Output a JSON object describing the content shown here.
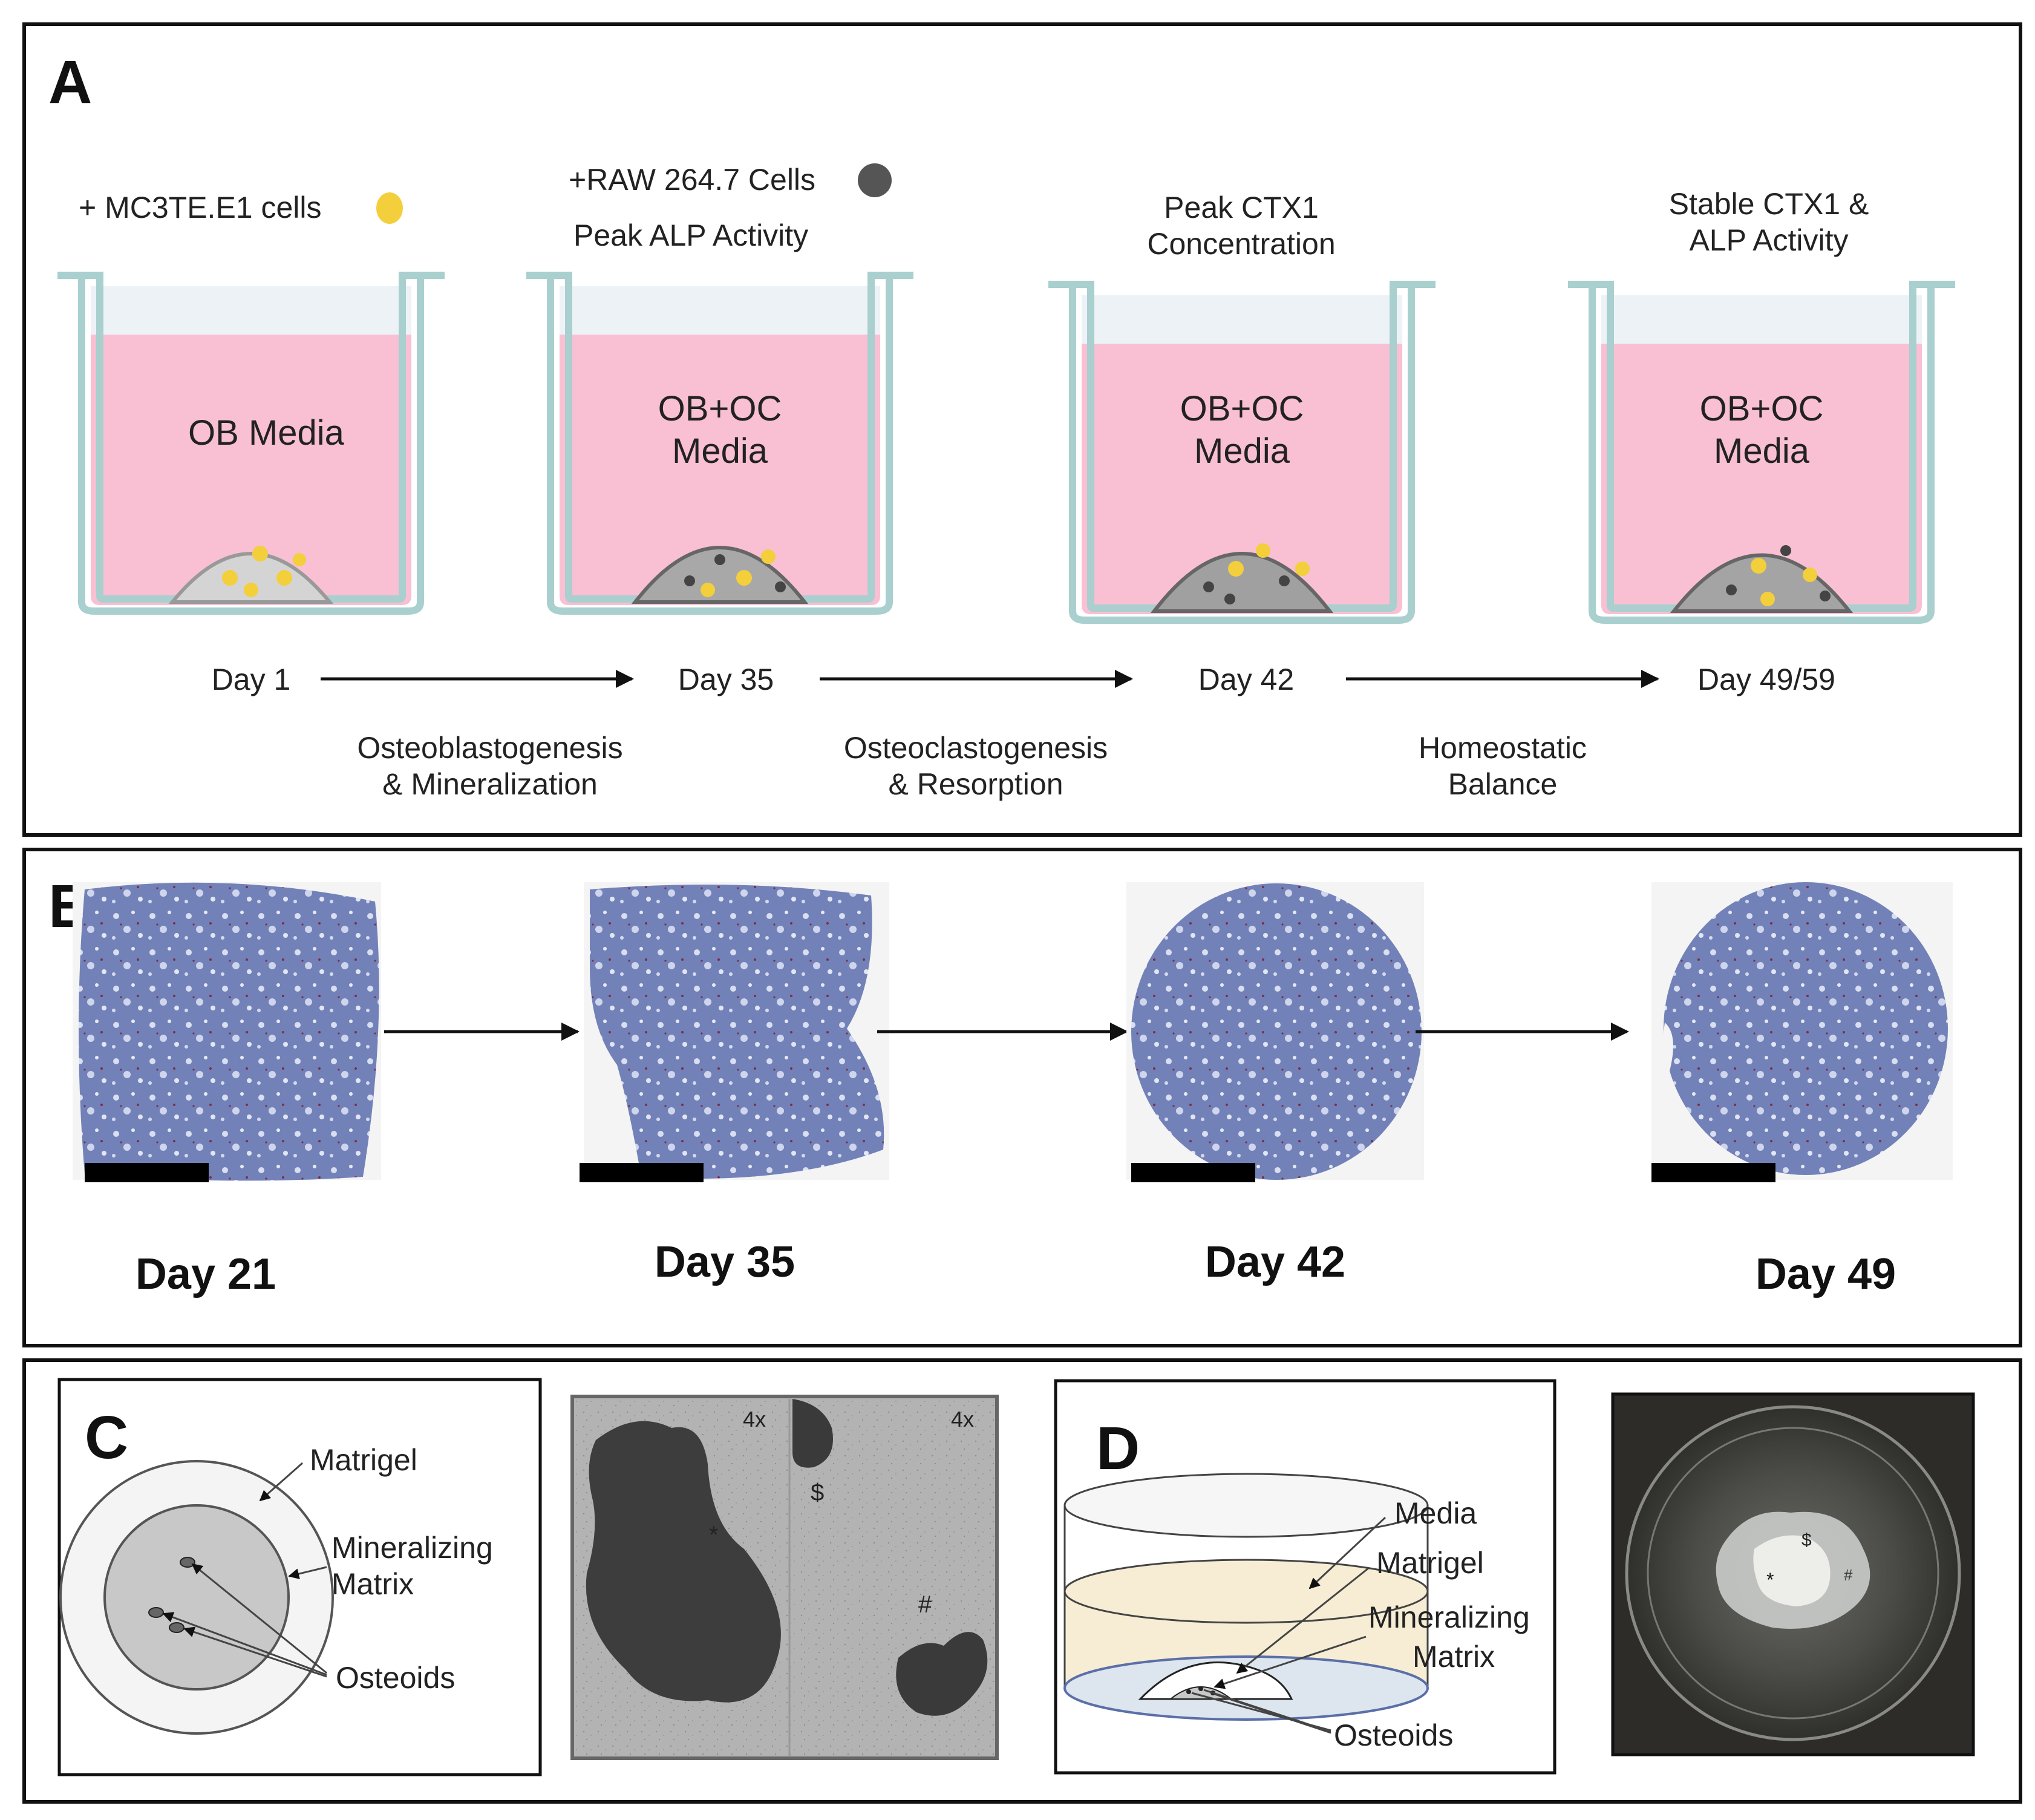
{
  "panelA": {
    "letter": "A",
    "additions": [
      {
        "line1": "+ MC3TE.E1 cells",
        "line2": ""
      },
      {
        "line1": "+RAW 264.7 Cells",
        "line2": "Peak ALP Activity"
      },
      {
        "line1": "Peak CTX1",
        "line2": "Concentration"
      },
      {
        "line1": "Stable CTX1 &",
        "line2": "ALP Activity"
      }
    ],
    "wells": [
      {
        "line1": "OB Media",
        "line2": ""
      },
      {
        "line1": "OB+OC",
        "line2": "Media"
      },
      {
        "line1": "OB+OC",
        "line2": "Media"
      },
      {
        "line1": "OB+OC",
        "line2": "Media"
      }
    ],
    "days": [
      "Day 1",
      "Day 35",
      "Day 42",
      "Day 49/59"
    ],
    "phases": [
      {
        "line1": "Osteoblastogenesis",
        "line2": "& Mineralization"
      },
      {
        "line1": "Osteoclastogenesis",
        "line2": "& Resorption"
      },
      {
        "line1": "Homeostatic",
        "line2": "Balance"
      }
    ],
    "colors": {
      "media": "#f9bfd3",
      "headspace": "#edf2f7",
      "well_wall": "#a9cfcf",
      "cell_yellow": "#f3cf3c",
      "cell_dark": "#555555"
    }
  },
  "panelB": {
    "letter": "B",
    "days": [
      "Day 21",
      "Day 35",
      "Day 42",
      "Day 49"
    ],
    "colors": {
      "stain": "#6e7fb6",
      "stain_light": "#c6cde6",
      "trap": "#7a2e4a"
    }
  },
  "panelC": {
    "letter": "C",
    "labels": {
      "matrigel": "Matrigel",
      "matrix_line1": "Mineralizing",
      "matrix_line2": "Matrix",
      "osteoids": "Osteoids"
    },
    "micro": {
      "mag_left": "4x",
      "mag_right": "4x",
      "mark_star": "*",
      "mark_dollar": "$",
      "mark_hash": "#"
    }
  },
  "panelD": {
    "letter": "D",
    "labels": {
      "media": "Media",
      "matrigel": "Matrigel",
      "matrix_line1": "Mineralizing",
      "matrix_line2": "Matrix",
      "osteoids": "Osteoids"
    },
    "photo": {
      "mark_dollar": "$",
      "mark_star": "*",
      "mark_hash": "#"
    }
  }
}
